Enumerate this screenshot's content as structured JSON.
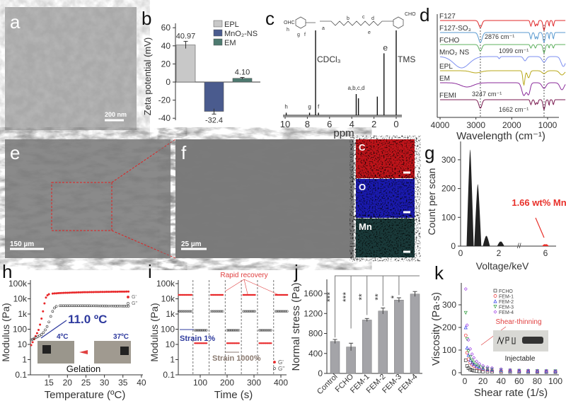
{
  "panels": {
    "a": {
      "label": "a",
      "scale_bar": "200 nm"
    },
    "e": {
      "label": "e",
      "scale_bar": "150 µm"
    },
    "f": {
      "label": "f",
      "scale_bar": "25 µm"
    },
    "maps": [
      "C",
      "O",
      "Mn"
    ],
    "map_colors": [
      "#c0141a",
      "#1a1ab0",
      "#1a3a3a"
    ]
  },
  "chart_data": [
    {
      "panel": "b",
      "type": "bar",
      "categories": [
        "EPL",
        "MnO2-NS",
        "EM"
      ],
      "legend": [
        "EPL",
        "MnO₂-NS",
        "EM"
      ],
      "values": [
        40.97,
        -32.4,
        4.1
      ],
      "errors": [
        4,
        3,
        1
      ],
      "data_labels": [
        "40.97",
        "-32.4",
        "4.10"
      ],
      "colors": [
        "#c8c8c8",
        "#4a5b8e",
        "#4d7a70"
      ],
      "ylabel": "Zeta potential (mV)",
      "yticks": [
        "60",
        "40",
        "20",
        "0",
        "-20",
        "-40"
      ],
      "ylim": [
        -40,
        60
      ],
      "legend_position": "top-right"
    },
    {
      "panel": "c",
      "type": "line",
      "xlabel": "ppm",
      "xticks": [
        "10",
        "8",
        "6",
        "4",
        "2",
        "0"
      ],
      "xlim": [
        10.5,
        -0.5
      ],
      "peaks": [
        {
          "ppm": 9.9,
          "height": 0.03,
          "label": "h"
        },
        {
          "ppm": 7.8,
          "height": 0.03,
          "label": "g"
        },
        {
          "ppm": 7.0,
          "height": 0.03,
          "label": "f"
        },
        {
          "ppm": 7.26,
          "height": 1.0,
          "label": "CDCl₃"
        },
        {
          "ppm": 3.6,
          "height": 0.25,
          "label": "a,b,c,d"
        },
        {
          "ppm": 3.4,
          "height": 0.2,
          "label": ""
        },
        {
          "ppm": 1.7,
          "height": 0.22,
          "label": ""
        },
        {
          "ppm": 1.1,
          "height": 0.73,
          "label": "e"
        },
        {
          "ppm": 0.0,
          "height": 1.0,
          "label": "TMS"
        }
      ],
      "structure_labels": [
        "OHC",
        "h",
        "g",
        "f",
        "a",
        "b",
        "c",
        "d",
        "e",
        "CHO"
      ]
    },
    {
      "panel": "d",
      "type": "line",
      "xlabel": "Wavelength (cm⁻¹)",
      "xticks": [
        4000,
        3000,
        2000,
        1000
      ],
      "xlim": [
        4000,
        500
      ],
      "series": [
        {
          "name": "F127",
          "color": "#e0282a",
          "bands": [
            [
              2876,
              10,
              60
            ],
            [
              1466,
              8,
              30
            ],
            [
              1340,
              8,
              30
            ],
            [
              1280,
              7,
              25
            ],
            [
              1099,
              14,
              40
            ],
            [
              960,
              8,
              20
            ],
            [
              840,
              8,
              25
            ]
          ]
        },
        {
          "name": "F127-SO₃",
          "color": "#5a9ad0",
          "bands": [
            [
              2876,
              14,
              70
            ],
            [
              1466,
              9,
              30
            ],
            [
              1340,
              9,
              30
            ],
            [
              1280,
              9,
              25
            ],
            [
              1099,
              14,
              40
            ],
            [
              960,
              9,
              20
            ],
            [
              840,
              9,
              25
            ]
          ]
        },
        {
          "name": "FCHO",
          "color": "#5fb05f",
          "bands": [
            [
              2876,
              9,
              60
            ],
            [
              1466,
              5,
              30
            ],
            [
              1340,
              5,
              30
            ],
            [
              1099,
              12,
              40
            ],
            [
              960,
              5,
              20
            ],
            [
              840,
              5,
              25
            ]
          ]
        },
        {
          "name": "MnO₂ NS",
          "color": "#7d8ff0",
          "bands": [
            [
              3400,
              16,
              300
            ],
            [
              2350,
              3,
              30
            ],
            [
              1630,
              6,
              60
            ],
            [
              1100,
              8,
              80
            ],
            [
              560,
              14,
              90
            ]
          ]
        },
        {
          "name": "EPL",
          "color": "#b8a818",
          "bands": [
            [
              3000,
              3,
              200
            ],
            [
              1662,
              20,
              40
            ],
            [
              1530,
              10,
              50
            ],
            [
              1100,
              4,
              80
            ],
            [
              600,
              6,
              90
            ]
          ]
        },
        {
          "name": "EM",
          "color": "#8a2a9a",
          "bands": [
            [
              3247,
              6,
              250
            ],
            [
              1662,
              18,
              80
            ],
            [
              1530,
              16,
              60
            ],
            [
              1100,
              8,
              80
            ],
            [
              600,
              10,
              80
            ]
          ]
        },
        {
          "name": "FEMI",
          "color": "#7a1a50",
          "bands": [
            [
              2876,
              12,
              60
            ],
            [
              1466,
              7,
              30
            ],
            [
              1340,
              7,
              30
            ],
            [
              1280,
              6,
              25
            ],
            [
              1099,
              14,
              40
            ],
            [
              960,
              8,
              20
            ],
            [
              840,
              7,
              25
            ]
          ]
        }
      ],
      "annotations": [
        "2876 cm⁻¹",
        "1099 cm⁻¹",
        "3247 cm⁻¹",
        "1662 cm⁻¹"
      ],
      "reference_lines": [
        2876,
        1099
      ]
    },
    {
      "panel": "g",
      "type": "area",
      "xlabel": "Voltage/keV",
      "ylabel": "Count per scan",
      "xticks": [
        "0",
        "2",
        "6"
      ],
      "yticks": [
        "0",
        "100",
        "200",
        "300"
      ],
      "ylim": [
        0,
        360
      ],
      "peaks": [
        [
          0.5,
          335
        ],
        [
          0.9,
          215
        ],
        [
          1.35,
          35
        ],
        [
          2.1,
          15
        ],
        [
          6.0,
          5
        ]
      ],
      "annotation": "1.66 wt% Mn",
      "annotation_color": "#e8302a"
    },
    {
      "panel": "h",
      "type": "scatter",
      "yscale": "log",
      "xlabel": "Temperature (ºC)",
      "ylabel": "Modulus (Pa)",
      "xticks": [
        "15",
        "20",
        "25",
        "30",
        "35",
        "40"
      ],
      "yticks": [
        "0.1",
        "1",
        "10",
        "100",
        "1k",
        "10k",
        "100k"
      ],
      "xlim": [
        10,
        40
      ],
      "ylim": [
        0.1,
        100000
      ],
      "series": [
        {
          "name": "G'",
          "color": "#e8282a",
          "x": [
            10.2,
            10.6,
            11,
            11.4,
            11.8,
            12.2,
            12.6,
            13,
            13.4,
            13.8,
            14.2,
            14.6,
            15,
            16,
            18,
            20,
            24,
            28,
            32,
            37
          ],
          "y": [
            9,
            14,
            22,
            35,
            55,
            90,
            200,
            500,
            1500,
            5000,
            12000,
            17000,
            20000,
            22000,
            24000,
            25000,
            27000,
            28000,
            29000,
            30000
          ]
        },
        {
          "name": "G''",
          "color": "#333333",
          "x": [
            10.2,
            10.6,
            11,
            11.5,
            12,
            12.5,
            13,
            13.5,
            14,
            14.5,
            15,
            15.5,
            16,
            16.5,
            17,
            18,
            20,
            25,
            30,
            37
          ],
          "y": [
            20,
            22,
            25,
            28,
            32,
            38,
            45,
            60,
            90,
            150,
            300,
            700,
            1500,
            2500,
            3200,
            3500,
            3500,
            3500,
            3400,
            3300
          ]
        }
      ],
      "annotations": [
        "11.0 ºC",
        "4ºC",
        "37ºC",
        "Gelation"
      ]
    },
    {
      "panel": "i",
      "type": "scatter",
      "yscale": "log",
      "xlabel": "Time (s)",
      "ylabel": "Modulus (Pa)",
      "xticks": [
        "100",
        "200",
        "300",
        "400"
      ],
      "yticks": [
        "0.1",
        "1",
        "10",
        "100",
        "1k",
        "10k",
        "100k"
      ],
      "xlim": [
        17,
        430
      ],
      "ylim": [
        0.1,
        100000
      ],
      "segments": [
        {
          "t": [
            20,
            70
          ],
          "G1": 18000,
          "G2": 1500
        },
        {
          "t": [
            80,
            125
          ],
          "G1": 12,
          "G2": 85
        },
        {
          "t": [
            140,
            185
          ],
          "G1": 18000,
          "G2": 1500
        },
        {
          "t": [
            200,
            245
          ],
          "G1": 12,
          "G2": 85
        },
        {
          "t": [
            260,
            305
          ],
          "G1": 18000,
          "G2": 1500
        },
        {
          "t": [
            320,
            365
          ],
          "G1": 12,
          "G2": 85
        },
        {
          "t": [
            380,
            425
          ],
          "G1": 18000,
          "G2": 1500
        }
      ],
      "dividers": [
        73,
        133,
        193,
        253,
        313,
        373
      ],
      "legend": [
        "G'",
        "G''"
      ],
      "annotations": {
        "recovery": "Rapid recovery",
        "low_strain": "Strain 1%",
        "high_strain": "Strain 1000%"
      }
    },
    {
      "panel": "j",
      "type": "bar",
      "categories": [
        "Control",
        "FCHO",
        "FEM-1",
        "FEM-2",
        "FEM-3",
        "FEM-4"
      ],
      "values": [
        640,
        530,
        1070,
        1250,
        1470,
        1590
      ],
      "errors": [
        40,
        75,
        30,
        60,
        45,
        50
      ],
      "ylabel": "Normal stress (Pa)",
      "yticks": [
        "0",
        "400",
        "800",
        "1200",
        "1600"
      ],
      "ylim": [
        0,
        1850
      ],
      "significance": [
        "***",
        "***",
        "**",
        "**",
        "*"
      ],
      "color": "#a4a4a8"
    },
    {
      "panel": "k",
      "type": "scatter",
      "xlabel": "Shear rate (1/s)",
      "ylabel": "Viscosity (Pa·s)",
      "xticks": [
        "0",
        "20",
        "40",
        "60",
        "80",
        "100"
      ],
      "yticks": [
        "0",
        "100",
        "200",
        "300"
      ],
      "xlim": [
        0,
        100
      ],
      "ylim": [
        0,
        390
      ],
      "x": [
        1,
        2.5,
        4,
        6,
        8,
        10,
        13,
        16,
        20,
        25,
        30,
        40,
        50,
        60,
        70,
        80,
        90,
        100
      ],
      "series": [
        {
          "name": "FCHO",
          "color": "#333333",
          "marker": "square",
          "y": [
            55,
            30,
            20,
            14,
            11,
            9,
            7,
            6,
            5,
            4,
            4,
            3,
            3,
            3,
            3,
            3,
            3,
            3
          ]
        },
        {
          "name": "FEM-1",
          "color": "#e8282a",
          "marker": "circle",
          "y": [
            165,
            88,
            60,
            44,
            35,
            29,
            23,
            19,
            15,
            12,
            10,
            8,
            7,
            6,
            6,
            5,
            5,
            5
          ]
        },
        {
          "name": "FEM-2",
          "color": "#2a3ae8",
          "marker": "triangle",
          "y": [
            200,
            110,
            78,
            56,
            44,
            37,
            29,
            24,
            19,
            15,
            13,
            10,
            9,
            8,
            7,
            7,
            6,
            6
          ]
        },
        {
          "name": "FEM-3",
          "color": "#2a9a3a",
          "marker": "triangle-down",
          "y": [
            265,
            148,
            95,
            70,
            55,
            45,
            35,
            28,
            22,
            18,
            15,
            12,
            10,
            9,
            8,
            8,
            7,
            7
          ]
        },
        {
          "name": "FEM-4",
          "color": "#a040e8",
          "marker": "diamond",
          "y": [
            370,
            210,
            145,
            105,
            82,
            66,
            50,
            40,
            31,
            25,
            21,
            16,
            13,
            11,
            10,
            9,
            9,
            8
          ]
        }
      ],
      "annotations": [
        "Shear-thinning",
        "Injectable"
      ]
    }
  ]
}
